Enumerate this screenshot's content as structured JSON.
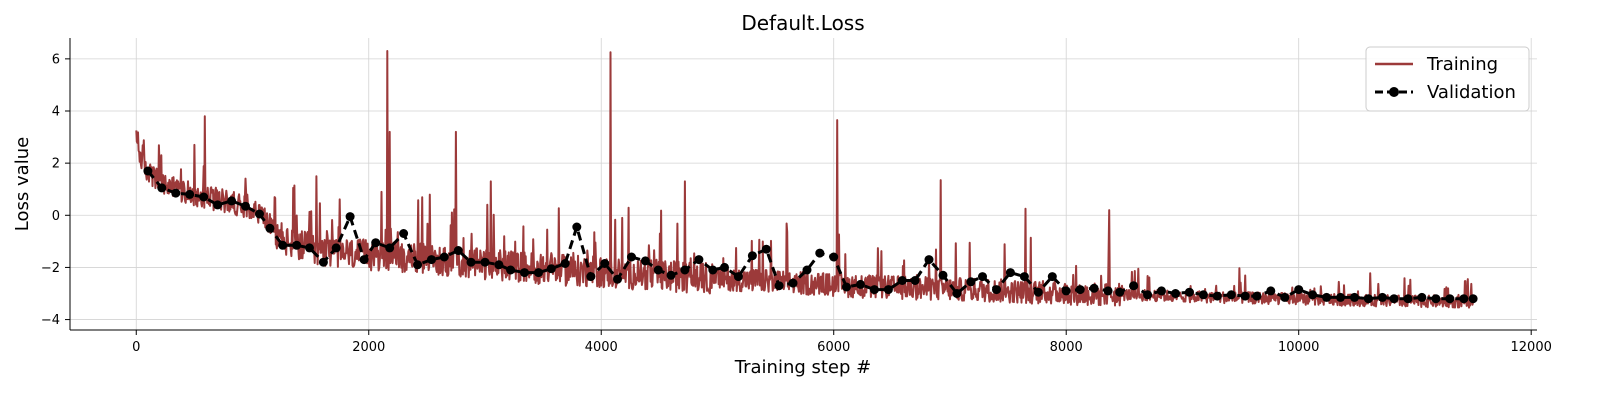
{
  "chart_data": {
    "type": "line",
    "title": "Default.Loss",
    "xlabel": "Training step #",
    "ylabel": "Loss value",
    "xlim": [
      -570,
      12050
    ],
    "ylim": [
      -4.4,
      6.8
    ],
    "xticks": [
      0,
      2000,
      4000,
      6000,
      8000,
      10000,
      12000
    ],
    "yticks": [
      -4,
      -2,
      0,
      2,
      4,
      6
    ],
    "grid": true,
    "legend_position": "top-right",
    "series": [
      {
        "name": "Training",
        "color": "#9c3a3a",
        "style": "line",
        "x": [
          0,
          50,
          100,
          200,
          300,
          400,
          500,
          600,
          700,
          800,
          900,
          1000,
          1100,
          1200,
          1300,
          1500,
          1700,
          1900,
          2100,
          2300,
          2500,
          2700,
          2900,
          3100,
          3300,
          3500,
          3700,
          3900,
          4100,
          4300,
          4500,
          4700,
          4900,
          5100,
          5300,
          5500,
          5700,
          5900,
          6100,
          6300,
          6500,
          6700,
          6900,
          7100,
          7300,
          7500,
          7700,
          7900,
          8100,
          8300,
          8500,
          8700,
          8900,
          9100,
          9300,
          9500,
          9700,
          9900,
          10100,
          10300,
          10500,
          10700,
          10900,
          11100,
          11300,
          11500
        ],
        "y": [
          2.9,
          2.1,
          1.7,
          1.3,
          1.1,
          0.95,
          0.85,
          0.75,
          0.65,
          0.55,
          0.45,
          0.3,
          0.0,
          -0.7,
          -1.0,
          -1.2,
          -1.35,
          -1.45,
          -1.5,
          -1.55,
          -1.6,
          -1.7,
          -1.8,
          -1.85,
          -1.9,
          -2.0,
          -2.05,
          -2.1,
          -2.15,
          -2.2,
          -2.25,
          -2.3,
          -2.35,
          -2.4,
          -2.45,
          -2.5,
          -2.55,
          -2.6,
          -2.65,
          -2.7,
          -2.72,
          -2.75,
          -2.78,
          -2.8,
          -2.83,
          -2.86,
          -2.9,
          -2.93,
          -2.96,
          -3.0,
          -3.02,
          -3.05,
          -3.07,
          -3.1,
          -3.12,
          -3.14,
          -3.16,
          -3.18,
          -3.2,
          -3.22,
          -3.24,
          -3.25,
          -3.27,
          -3.28,
          -3.3,
          -3.3
        ],
        "spikes": [
          {
            "x": 590,
            "y": 3.8
          },
          {
            "x": 1550,
            "y": 1.5
          },
          {
            "x": 2160,
            "y": 6.3
          },
          {
            "x": 2180,
            "y": 3.2
          },
          {
            "x": 2750,
            "y": 3.2
          },
          {
            "x": 3050,
            "y": 1.3
          },
          {
            "x": 4080,
            "y": 6.25
          },
          {
            "x": 4720,
            "y": 1.3
          },
          {
            "x": 6030,
            "y": 3.65
          },
          {
            "x": 6920,
            "y": 1.35
          },
          {
            "x": 7650,
            "y": 0.25
          },
          {
            "x": 8370,
            "y": 0.2
          }
        ]
      },
      {
        "name": "Validation",
        "color": "#000000",
        "style": "dashed-marker",
        "x": [
          100,
          220,
          340,
          460,
          580,
          700,
          820,
          940,
          1060,
          1150,
          1260,
          1380,
          1490,
          1610,
          1720,
          1840,
          1960,
          2060,
          2180,
          2300,
          2420,
          2540,
          2650,
          2770,
          2880,
          3000,
          3120,
          3220,
          3340,
          3460,
          3570,
          3690,
          3790,
          3910,
          4030,
          4140,
          4260,
          4380,
          4490,
          4600,
          4720,
          4840,
          4960,
          5060,
          5180,
          5300,
          5420,
          5530,
          5650,
          5770,
          5880,
          6000,
          6110,
          6230,
          6350,
          6470,
          6590,
          6700,
          6820,
          6940,
          7060,
          7180,
          7280,
          7400,
          7520,
          7640,
          7760,
          7880,
          8000,
          8120,
          8240,
          8360,
          8460,
          8580,
          8700,
          8820,
          8940,
          9060,
          9180,
          9300,
          9420,
          9540,
          9640,
          9760,
          9880,
          10000,
          10120,
          10240,
          10360,
          10480,
          10600,
          10720,
          10820,
          10940,
          11060,
          11180,
          11300,
          11420,
          11500
        ],
        "y": [
          1.7,
          1.05,
          0.85,
          0.8,
          0.7,
          0.4,
          0.55,
          0.35,
          0.05,
          -0.5,
          -1.15,
          -1.15,
          -1.25,
          -1.8,
          -1.25,
          -0.05,
          -1.7,
          -1.05,
          -1.25,
          -0.7,
          -1.9,
          -1.7,
          -1.6,
          -1.35,
          -1.8,
          -1.8,
          -1.9,
          -2.1,
          -2.2,
          -2.2,
          -2.05,
          -1.85,
          -0.45,
          -2.35,
          -1.85,
          -2.45,
          -1.6,
          -1.75,
          -2.1,
          -2.3,
          -2.1,
          -1.7,
          -2.1,
          -2.0,
          -2.35,
          -1.55,
          -1.3,
          -2.7,
          -2.6,
          -2.1,
          -1.45,
          -1.6,
          -2.75,
          -2.65,
          -2.85,
          -2.85,
          -2.5,
          -2.5,
          -1.7,
          -2.3,
          -3.0,
          -2.55,
          -2.35,
          -2.85,
          -2.2,
          -2.35,
          -2.95,
          -2.35,
          -2.9,
          -2.85,
          -2.8,
          -2.9,
          -2.95,
          -2.7,
          -3.05,
          -2.9,
          -3.0,
          -2.95,
          -3.05,
          -3.1,
          -3.05,
          -3.1,
          -3.1,
          -2.9,
          -3.15,
          -2.85,
          -3.05,
          -3.15,
          -3.15,
          -3.15,
          -3.2,
          -3.15,
          -3.2,
          -3.2,
          -3.15,
          -3.2,
          -3.2,
          -3.2,
          -3.2
        ]
      }
    ]
  }
}
